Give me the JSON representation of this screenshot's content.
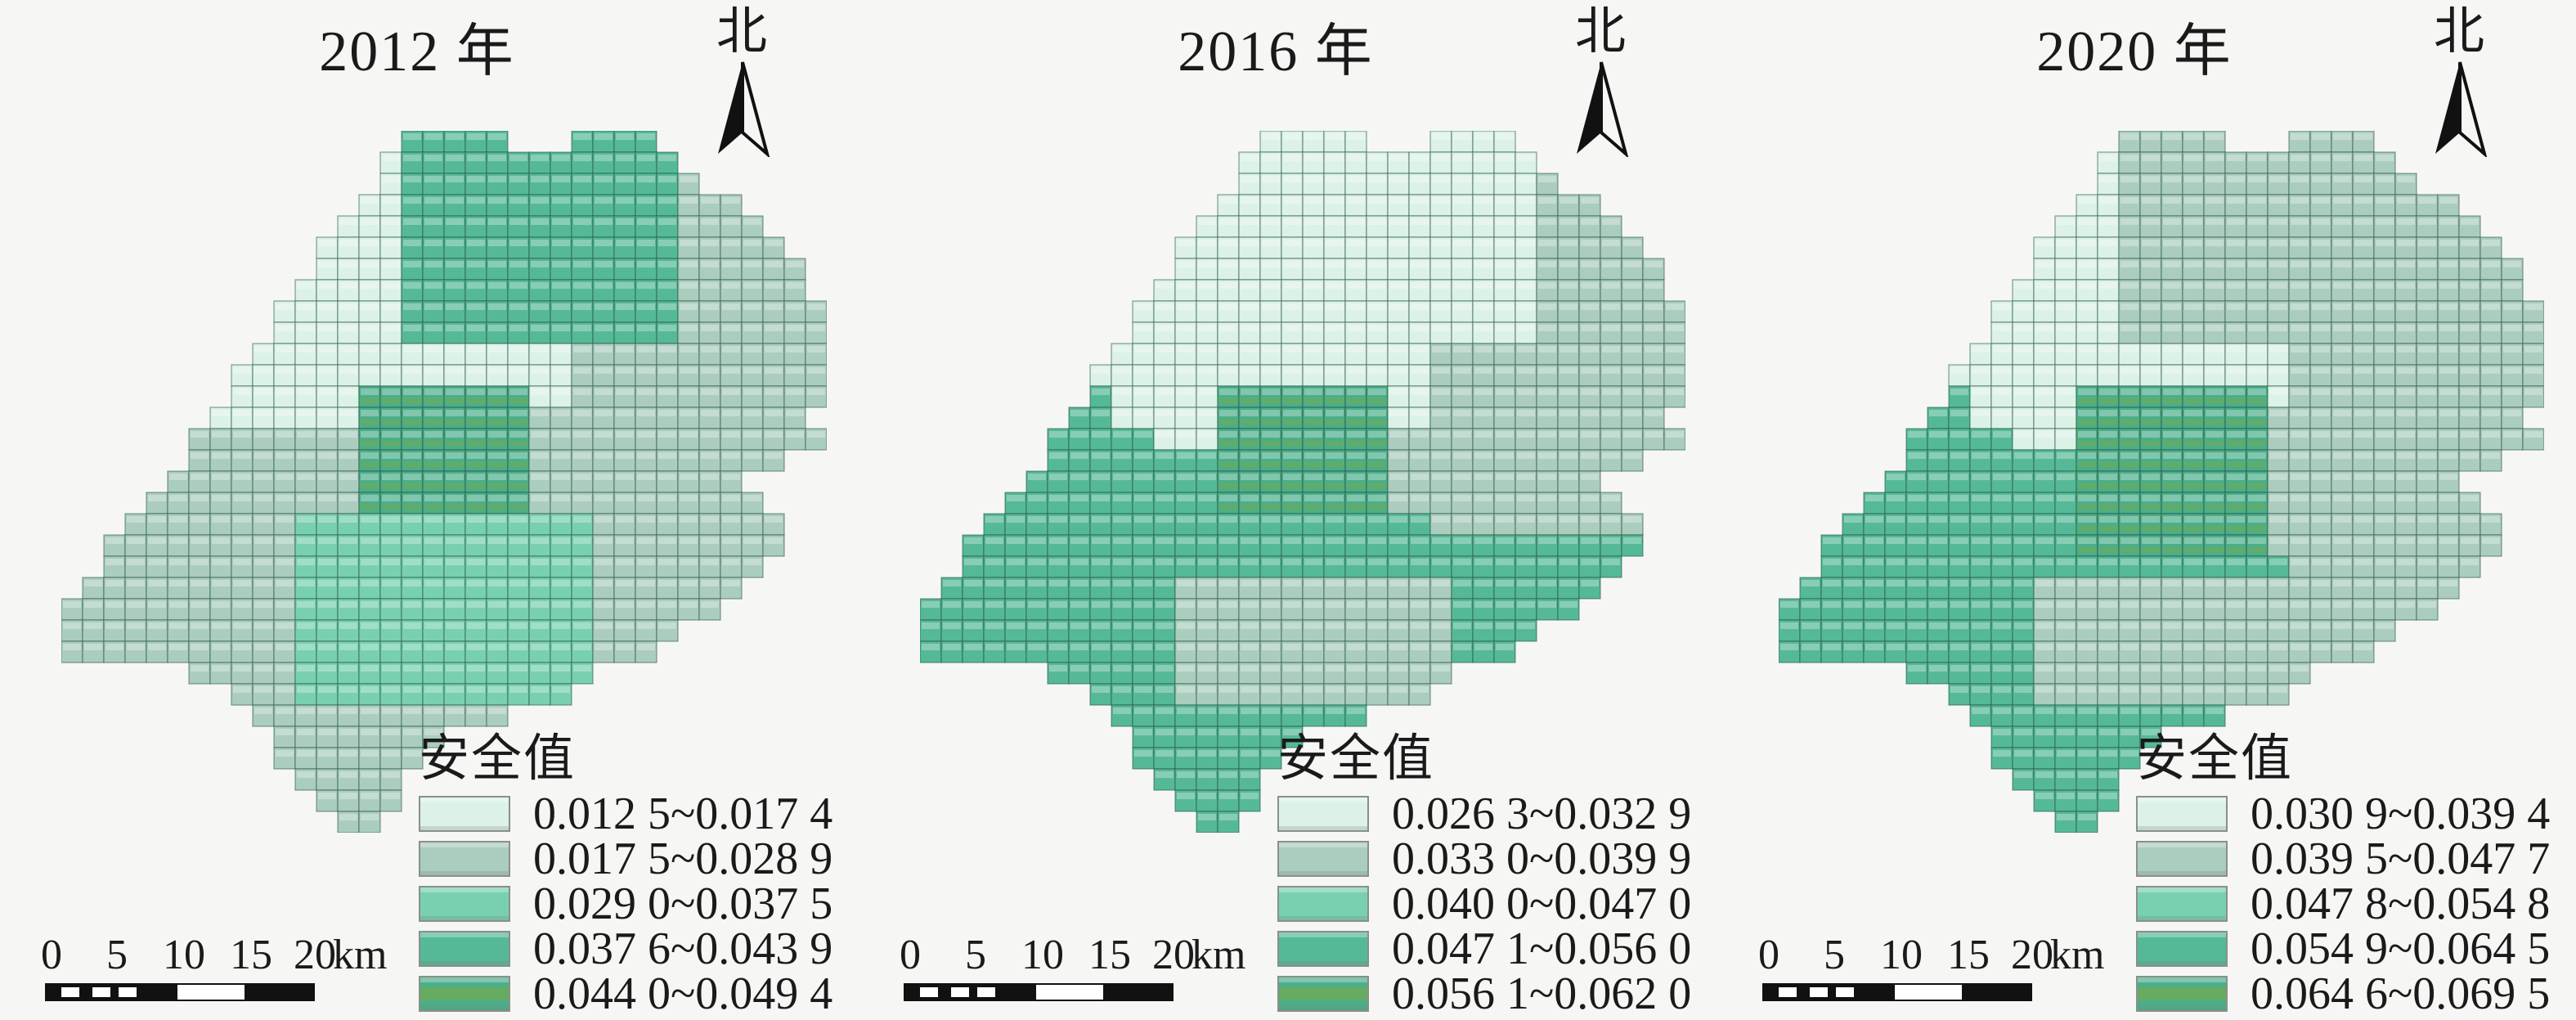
{
  "figure": {
    "background": "#f6f7f4"
  },
  "classes": {
    "1": "#dcf2e7",
    "2": "#abcdbe",
    "3": "#79d0af",
    "4": "#55b997",
    "5": "#4bae8a",
    "stripe": "#66ab60",
    "cell_stroke": "rgba(38,82,68,0.55)",
    "cell_highlight": "rgba(255,255,255,0.30)"
  },
  "cell": {
    "size": 26,
    "cols": 36,
    "rows": 33
  },
  "panels": [
    {
      "title": "2012 年",
      "north_label": "北",
      "legend": {
        "title": "安全值",
        "items": [
          {
            "class": "1",
            "label": "0.012 5~0.017 4"
          },
          {
            "class": "2",
            "label": "0.017 5~0.028 9"
          },
          {
            "class": "3",
            "label": "0.029 0~0.037 5"
          },
          {
            "class": "4",
            "label": "0.037 6~0.043 9"
          },
          {
            "class": "5",
            "label": "0.044 0~0.049 4"
          }
        ]
      },
      "scalebar": {
        "ticks": [
          "0",
          "5",
          "10",
          "15",
          "20"
        ],
        "unit": "km"
      },
      "grid": [
        "000000000000000044444000444400000000",
        "000000000000000144444444444440000000",
        "000000000000000144444444444442000000",
        "000000000000001144444444444442220000",
        "000000000000011144444444444442222000",
        "000000000000111144444444444442222200",
        "000000000000111144444444444442222220",
        "000000000001111144444444444442222220",
        "000000000011111144444444444442222222",
        "000000000011111144444444444442222222",
        "000000000111111111111111222222222222",
        "000000001111111111111111222222222222",
        "000000001111115555555511222222222222",
        "000000011111115555555522222222222220",
        "000000222222225555555522222222222222",
        "000000222222225555555522222222222200",
        "000002222222225555555522222222220000",
        "000022222222225555555522222222222000",
        "000222222223333333333333322222222200",
        "002222222223333333333333322222222200",
        "002222222223333333333333322222222000",
        "022222222223333333333333322222220000",
        "222222222223333333333333322222200000",
        "222222222223333333333333322220000000",
        "222222222223333333333333322200000000",
        "000000222223333333333333300000000000",
        "000000002223333333333333000000000000",
        "000000000222222222222000000000000000",
        "000000000022222222000000000000000000",
        "000000000022222220000000000000000000",
        "000000000002222200000000000000000000",
        "000000000000222200000000000000000000",
        "000000000000022000000000000000000000"
      ]
    },
    {
      "title": "2016 年",
      "north_label": "北",
      "legend": {
        "title": "安全值",
        "items": [
          {
            "class": "1",
            "label": "0.026 3~0.032 9"
          },
          {
            "class": "2",
            "label": "0.033 0~0.039 9"
          },
          {
            "class": "3",
            "label": "0.040 0~0.047 0"
          },
          {
            "class": "4",
            "label": "0.047 1~0.056 0"
          },
          {
            "class": "5",
            "label": "0.056 1~0.062 0"
          }
        ]
      },
      "scalebar": {
        "ticks": [
          "0",
          "5",
          "10",
          "15",
          "20"
        ],
        "unit": "km"
      },
      "grid": [
        "000000000000000011111000111100000000",
        "000000000000000111111111111110000000",
        "000000000000000111111111111112000000",
        "000000000000001111111111111112220000",
        "000000000000011111111111111112222000",
        "000000000000111111111111111112222200",
        "000000000000111111111111111112222220",
        "000000000001111111111111111112222220",
        "000000000011111111111111111112222222",
        "000000000011111111111111111112222222",
        "000000000111111111111111222222222222",
        "000000001111111111111111222222222222",
        "000000004111115555555511222222222222",
        "000000044111115555555511222222222220",
        "000000444441115555555522222222222222",
        "000000444444445555555522222222222200",
        "000004444444445555555522222222220000",
        "000044444444445555555522222222222000",
        "000444444444444444444444222222222200",
        "004444444444444444444444444444444400",
        "004444444444444444444444444444444000",
        "044444444444222222222222244444440000",
        "444444444444222222222222244444400000",
        "444444444444222222222222244440000000",
        "444444444444222222222222244400000000",
        "000000444444222222222222200000000000",
        "000000004444222222222222000000000000",
        "000000000444444444444000000000000000",
        "000000000044444444000000000000000000",
        "000000000044444440000000000000000000",
        "000000000004444400000000000000000000",
        "000000000000444400000000000000000000",
        "000000000000044000000000000000000000"
      ]
    },
    {
      "title": "2020 年",
      "north_label": "北",
      "legend": {
        "title": "安全值",
        "items": [
          {
            "class": "1",
            "label": "0.030 9~0.039 4"
          },
          {
            "class": "2",
            "label": "0.039 5~0.047 7"
          },
          {
            "class": "3",
            "label": "0.047 8~0.054 8"
          },
          {
            "class": "4",
            "label": "0.054 9~0.064 5"
          },
          {
            "class": "5",
            "label": "0.064 6~0.069 5"
          }
        ]
      },
      "scalebar": {
        "ticks": [
          "0",
          "5",
          "10",
          "15",
          "20"
        ],
        "unit": "km"
      },
      "grid": [
        "000000000000000022222000222200000000",
        "000000000000000122222222222220000000",
        "000000000000000122222222222222000000",
        "000000000000001122222222222222220000",
        "000000000000011122222222222222222000",
        "000000000000111122222222222222222200",
        "000000000000111122222222222222222220",
        "000000000001111122222222222222222220",
        "000000000011111122222222222222222222",
        "000000000011111122222222222222222222",
        "000000000111111111111111222222222222",
        "000000001111111111111111222222222222",
        "000000004111115555555551222222222222",
        "000000044111115555555552222222222220",
        "000000444441115555555552222222222222",
        "000000444444445555555552222222222200",
        "000004444444445555555552222222220000",
        "000044444444445555555552222222222000",
        "000444444444445555555552222222222200",
        "004444444444445555555552222222222200",
        "004444444444444444444444222222222000",
        "044444444444222222222222222222220000",
        "444444444444222222222222222222200000",
        "444444444444222222222222222220000000",
        "444444444444222222222222222200000000",
        "000000444444222222222222200000000000",
        "000000004444222222222222000000000000",
        "000000000444444444444000000000000000",
        "000000000044444444000000000000000000",
        "000000000044444440000000000000000000",
        "000000000004444400000000000000000000",
        "000000000000444400000000000000000000",
        "000000000000044000000000000000000000"
      ]
    }
  ]
}
